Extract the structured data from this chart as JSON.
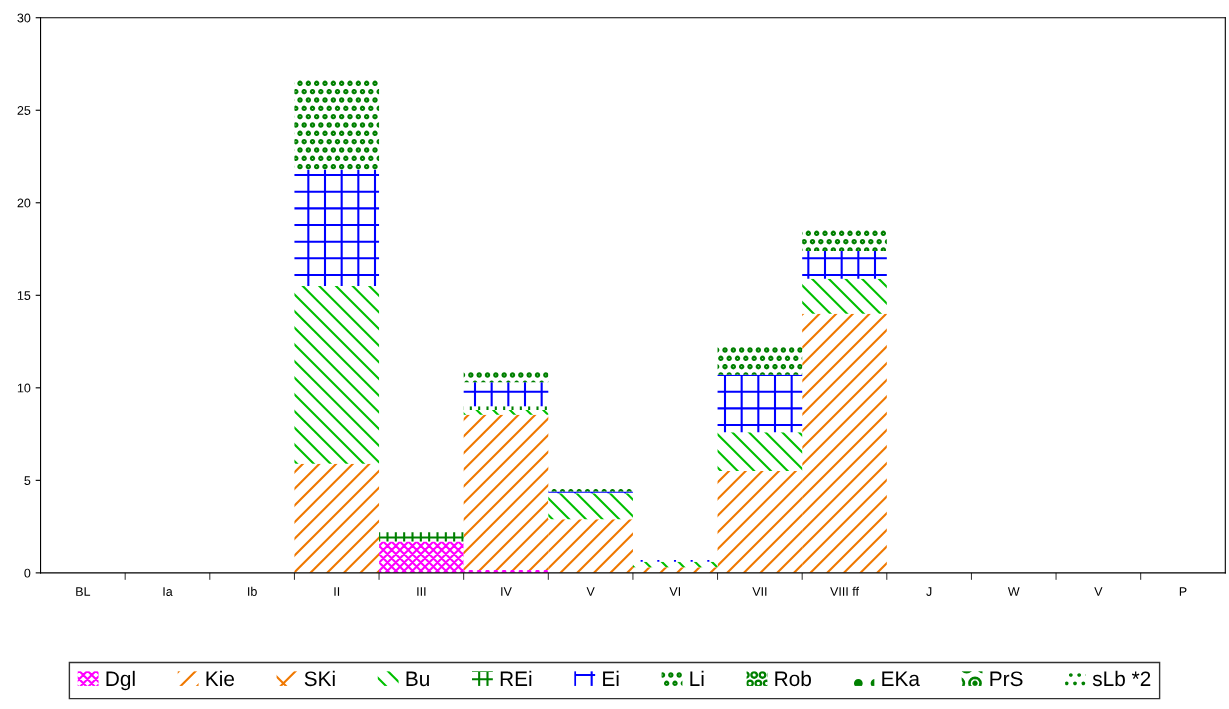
{
  "chart_data": {
    "type": "bar",
    "stacked": true,
    "categories": [
      "BL",
      "Ia",
      "Ib",
      "II",
      "III",
      "IV",
      "V",
      "VI",
      "VII",
      "VIII ff",
      "J",
      "W",
      "V",
      "P"
    ],
    "series": [
      {
        "name": "Dgl",
        "color": "#ff00ff",
        "values": [
          null,
          null,
          null,
          null,
          1.7,
          0.15,
          null,
          null,
          null,
          null,
          null,
          null,
          null,
          null
        ]
      },
      {
        "name": "Kie",
        "color": "#f07800",
        "values": [
          null,
          null,
          null,
          5.9,
          null,
          8.4,
          2.9,
          0.3,
          5.5,
          14.0,
          null,
          null,
          null,
          null
        ]
      },
      {
        "name": "SKi",
        "color": "#f07800",
        "values": [
          null,
          null,
          null,
          null,
          null,
          null,
          null,
          null,
          null,
          null,
          null,
          null,
          null,
          null
        ]
      },
      {
        "name": "Bu",
        "color": "#00c000",
        "values": [
          null,
          null,
          null,
          9.6,
          null,
          0.25,
          1.4,
          0.3,
          2.1,
          1.9,
          null,
          null,
          null,
          null
        ]
      },
      {
        "name": "REi",
        "color": "#008000",
        "values": [
          null,
          null,
          null,
          null,
          0.5,
          0.2,
          null,
          null,
          null,
          null,
          null,
          null,
          null,
          null
        ]
      },
      {
        "name": "Ei",
        "color": "#0000ff",
        "values": [
          null,
          null,
          null,
          6.3,
          null,
          1.3,
          0.1,
          0.1,
          3.1,
          1.5,
          null,
          null,
          null,
          null
        ]
      },
      {
        "name": "Li",
        "color": "#008000",
        "values": [
          null,
          null,
          null,
          4.9,
          null,
          0.6,
          0.25,
          null,
          1.5,
          1.2,
          null,
          null,
          null,
          null
        ]
      },
      {
        "name": "Rob",
        "color": "#008000",
        "values": [
          null,
          null,
          null,
          null,
          null,
          null,
          null,
          null,
          null,
          null,
          null,
          null,
          null,
          null
        ]
      },
      {
        "name": "EKa",
        "color": "#008000",
        "values": [
          null,
          null,
          null,
          null,
          null,
          null,
          null,
          null,
          null,
          null,
          null,
          null,
          null,
          null
        ]
      },
      {
        "name": "PrS",
        "color": "#008000",
        "values": [
          null,
          null,
          null,
          null,
          null,
          null,
          null,
          null,
          null,
          null,
          null,
          null,
          null,
          null
        ]
      },
      {
        "name": "sLb *2",
        "color": "#008000",
        "values": [
          null,
          null,
          null,
          null,
          null,
          null,
          null,
          null,
          null,
          null,
          null,
          null,
          null,
          null
        ]
      }
    ],
    "ylim": [
      0,
      30
    ],
    "yticks": [
      0,
      5,
      10,
      15,
      20,
      25,
      30
    ],
    "grid": false,
    "legend": "bottom"
  }
}
